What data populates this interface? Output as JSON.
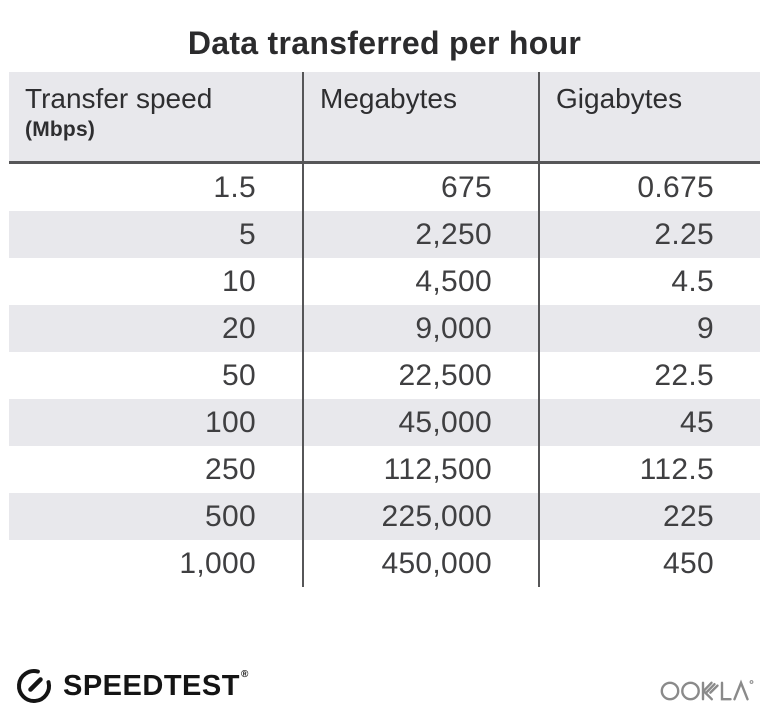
{
  "title": "Data transferred per hour",
  "table": {
    "headers": [
      {
        "label": "Transfer speed",
        "sublabel": "(Mbps)"
      },
      {
        "label": "Megabytes"
      },
      {
        "label": "Gigabytes"
      }
    ],
    "rows": [
      [
        "1.5",
        "675",
        "0.675"
      ],
      [
        "5",
        "2,250",
        "2.25"
      ],
      [
        "10",
        "4,500",
        "4.5"
      ],
      [
        "20",
        "9,000",
        "9"
      ],
      [
        "50",
        "22,500",
        "22.5"
      ],
      [
        "100",
        "45,000",
        "45"
      ],
      [
        "250",
        "112,500",
        "112.5"
      ],
      [
        "500",
        "225,000",
        "225"
      ],
      [
        "1,000",
        "450,000",
        "450"
      ]
    ]
  },
  "chart_data": {
    "type": "table",
    "title": "Data transferred per hour",
    "columns": [
      "Transfer speed (Mbps)",
      "Megabytes",
      "Gigabytes"
    ],
    "rows": [
      [
        1.5,
        675,
        0.675
      ],
      [
        5,
        2250,
        2.25
      ],
      [
        10,
        4500,
        4.5
      ],
      [
        20,
        9000,
        9
      ],
      [
        50,
        22500,
        22.5
      ],
      [
        100,
        45000,
        45
      ],
      [
        250,
        112500,
        112.5
      ],
      [
        500,
        225000,
        225
      ],
      [
        1000,
        450000,
        450
      ]
    ],
    "layout_hints": {
      "striped_rows": true,
      "stripe_color": "#e8e8ec",
      "divider_color": "#565658",
      "value_alignment": "right"
    }
  },
  "footer": {
    "speedtest_label": "SPEEDTEST",
    "speedtest_mark": "®",
    "ookla_label": "OOKLA"
  },
  "colors": {
    "background": "#ffffff",
    "title_text": "#2b2b2d",
    "header_bg": "#e8e8ec",
    "divider": "#565658",
    "number_text": "#3f3f41",
    "speedtest_black": "#141414",
    "ookla_gray": "#8a8a8a"
  }
}
